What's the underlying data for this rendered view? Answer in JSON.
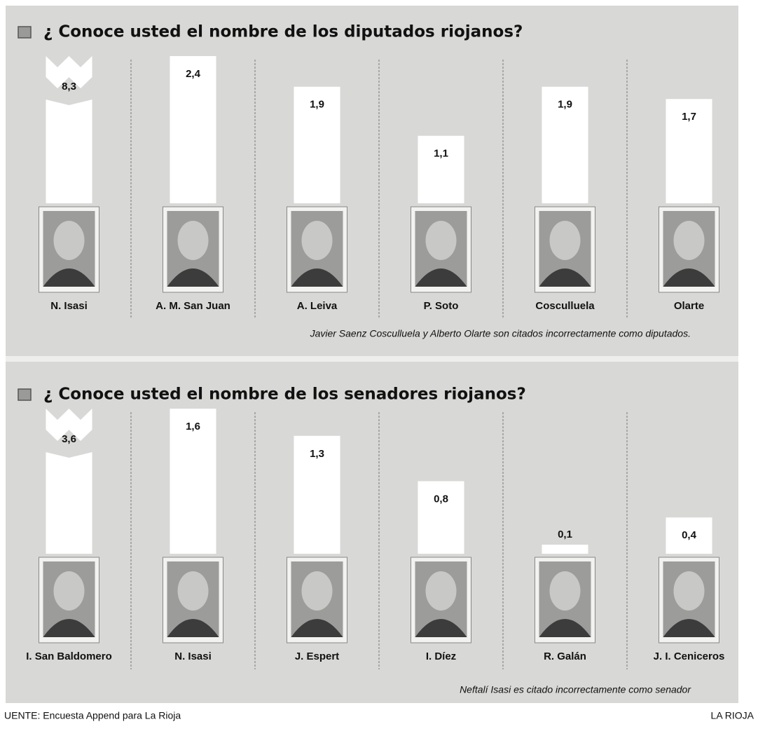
{
  "chart_data": [
    {
      "type": "bar",
      "title": "¿ Conoce usted el nombre de los diputados riojanos?",
      "categories": [
        "N. Isasi",
        "A. M. San Juan",
        "A. Leiva",
        "P. Soto",
        "Cosculluela",
        "Olarte"
      ],
      "values": [
        8.3,
        2.4,
        1.9,
        1.1,
        1.9,
        1.7
      ],
      "value_labels": [
        "8,3",
        "2,4",
        "1,9",
        "1,1",
        "1,9",
        "1,7"
      ],
      "color": "#ffffff",
      "note": "Javier Saenz Cosculluela y Alberto Olarte son citados incorrectamente como diputados."
    },
    {
      "type": "bar",
      "title": "¿ Conoce usted el nombre de los senadores riojanos?",
      "categories": [
        "I. San Baldomero",
        "N. Isasi",
        "J. Espert",
        "I. Díez",
        "R. Galán",
        "J. I. Ceniceros"
      ],
      "values": [
        3.6,
        1.6,
        1.3,
        0.8,
        0.1,
        0.4
      ],
      "value_labels": [
        "3,6",
        "1,6",
        "1,3",
        "0,8",
        "0,1",
        "0,4"
      ],
      "color": "#ffffff",
      "note": "Neftalí Isasi es citado incorrectamente como senador"
    }
  ],
  "footer": {
    "source": "UENTE: Encuesta Append para La Rioja",
    "publisher": "LA RIOJA"
  }
}
